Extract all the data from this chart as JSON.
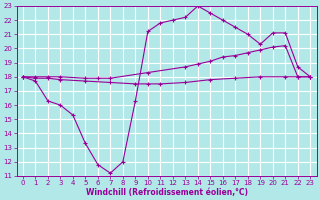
{
  "xlabel": "Windchill (Refroidissement éolien,°C)",
  "bg_color": "#b2e8e8",
  "line_color": "#990099",
  "grid_color": "#ffffff",
  "xlim": [
    -0.5,
    23.5
  ],
  "ylim": [
    11,
    23
  ],
  "xticks": [
    0,
    1,
    2,
    3,
    4,
    5,
    6,
    7,
    8,
    9,
    10,
    11,
    12,
    13,
    14,
    15,
    16,
    17,
    18,
    19,
    20,
    21,
    22,
    23
  ],
  "yticks": [
    11,
    12,
    13,
    14,
    15,
    16,
    17,
    18,
    19,
    20,
    21,
    22,
    23
  ],
  "line1_x": [
    0,
    1,
    2,
    3,
    4,
    5,
    6,
    7,
    8,
    9,
    10,
    11,
    12,
    13,
    14,
    15,
    16,
    17,
    18,
    19,
    20,
    21,
    22,
    23
  ],
  "line1_y": [
    18,
    17.7,
    16.3,
    16.0,
    15.3,
    13.3,
    11.8,
    11.2,
    12.0,
    16.3,
    21.2,
    21.8,
    22.0,
    22.2,
    23.0,
    22.5,
    22.0,
    21.5,
    21.0,
    20.3,
    21.1,
    21.1,
    18.7,
    18.0
  ],
  "line2_x": [
    0,
    1,
    2,
    3,
    5,
    6,
    7,
    10,
    13,
    14,
    15,
    16,
    17,
    18,
    19,
    20,
    21,
    22,
    23
  ],
  "line2_y": [
    18.0,
    18.0,
    18.0,
    18.0,
    17.9,
    17.9,
    17.9,
    18.3,
    18.7,
    18.9,
    19.1,
    19.4,
    19.5,
    19.7,
    19.9,
    20.1,
    20.2,
    18.0,
    18.0
  ],
  "line3_x": [
    0,
    1,
    2,
    3,
    5,
    7,
    9,
    10,
    11,
    13,
    15,
    17,
    19,
    21,
    22,
    23
  ],
  "line3_y": [
    18.0,
    17.9,
    17.9,
    17.8,
    17.7,
    17.6,
    17.5,
    17.5,
    17.5,
    17.6,
    17.8,
    17.9,
    18.0,
    18.0,
    18.0,
    18.0
  ]
}
